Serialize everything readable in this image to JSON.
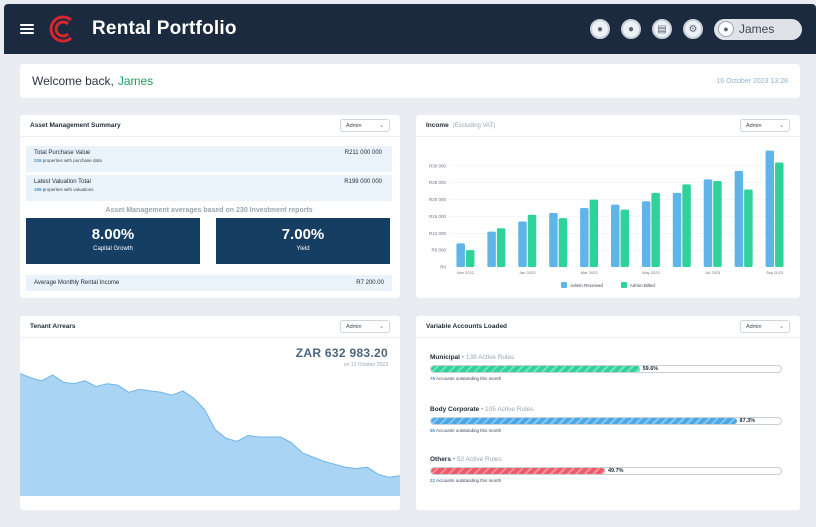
{
  "header": {
    "title": "Rental Portfolio",
    "user": "James",
    "icons": [
      "circle-icon-1",
      "circle-icon-2",
      "document-icon",
      "settings-icon"
    ]
  },
  "welcome": {
    "text": "Welcome back,",
    "name": "James",
    "date": "16 October 2023 13:28"
  },
  "asset_summary": {
    "title": "Asset Management Summary",
    "filter": "Admin",
    "purchase_label": "Total Purchase Value",
    "purchase_count": "226",
    "purchase_note": "properties with purchase data",
    "purchase_value": "R211 000 000",
    "valuation_label": "Latest Valuation Total",
    "valuation_count": "199",
    "valuation_note": "properties with valuations",
    "valuation_value": "R199 000 000",
    "based_on": "Asset Management averages based on 230 Investment reports",
    "kpi": [
      {
        "value": "8.00%",
        "label": "Capital Growth"
      },
      {
        "value": "7.00%",
        "label": "Yield"
      }
    ],
    "rental_label": "Average Monthly Rental Income",
    "rental_value": "R7 200.00"
  },
  "income": {
    "title": "Income",
    "subtitle": "(Excluding VAT)",
    "filter": "Admin"
  },
  "chart_data": {
    "type": "bar",
    "categories": [
      "Nov 2022",
      "",
      "Jan 2023",
      "",
      "Mar 2023",
      "",
      "May 2023",
      "",
      "Jul 2023",
      "",
      "Sep 2023"
    ],
    "series": [
      {
        "name": "Admin Received",
        "values": [
          7000,
          10500,
          13500,
          16000,
          17500,
          18500,
          19500,
          22000,
          26000,
          28500,
          34500
        ]
      },
      {
        "name": "Admin Billed",
        "values": [
          5000,
          11500,
          15500,
          14500,
          20000,
          17000,
          22000,
          24500,
          25500,
          23000,
          31000
        ]
      }
    ],
    "yticks": [
      "R0",
      "R5 000",
      "R10 000",
      "R15 000",
      "R20 000",
      "R25 000",
      "R30 000"
    ],
    "ylim": [
      0,
      35000
    ],
    "colors": {
      "received": "#5fb5e8",
      "billed": "#2fd39a"
    }
  },
  "arrears": {
    "title": "Tenant Arrears",
    "filter": "Admin",
    "amount": "ZAR 632 983.20",
    "date": "on 13 October 2023",
    "series": [
      0.85,
      0.82,
      0.8,
      0.84,
      0.79,
      0.78,
      0.8,
      0.76,
      0.78,
      0.77,
      0.72,
      0.74,
      0.73,
      0.72,
      0.7,
      0.73,
      0.68,
      0.6,
      0.46,
      0.4,
      0.38,
      0.42,
      0.41,
      0.41,
      0.41,
      0.37,
      0.3,
      0.27,
      0.24,
      0.22,
      0.2,
      0.19,
      0.2,
      0.15,
      0.13,
      0.14
    ]
  },
  "variable_accounts": {
    "title": "Variable Accounts Loaded",
    "filter": "Admin",
    "items": [
      {
        "name": "Municipal",
        "rules": "138 Active Rules",
        "percent": 59.6,
        "pct_label": "59.6%",
        "count": "76",
        "note": "Accounts outstanding this month",
        "color": "#2fd39a"
      },
      {
        "name": "Body Corporate",
        "rules": "105 Active Rules",
        "percent": 87.3,
        "pct_label": "87.3%",
        "count": "55",
        "note": "Accounts outstanding this month",
        "color": "#4aa8e8"
      },
      {
        "name": "Others",
        "rules": "52 Active Rules",
        "percent": 49.7,
        "pct_label": "49.7%",
        "count": "22",
        "note": "Accounts outstanding this month",
        "color": "#ee5a6a"
      }
    ]
  }
}
